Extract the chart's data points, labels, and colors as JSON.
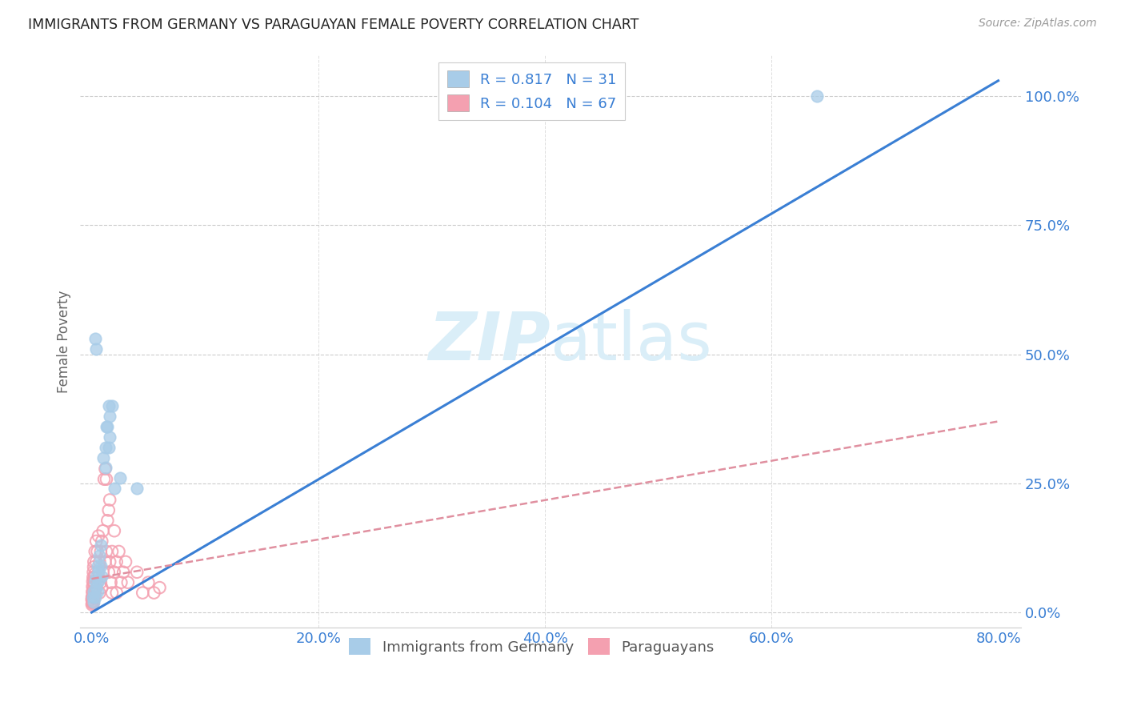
{
  "title": "IMMIGRANTS FROM GERMANY VS PARAGUAYAN FEMALE POVERTY CORRELATION CHART",
  "source": "Source: ZipAtlas.com",
  "xlabel_ticks": [
    "0.0%",
    "",
    "",
    "",
    "",
    "20.0%",
    "",
    "",
    "",
    "",
    "40.0%",
    "",
    "",
    "",
    "",
    "60.0%",
    "",
    "",
    "",
    "",
    "80.0%"
  ],
  "xlabel_vals": [
    0.0,
    0.04,
    0.08,
    0.12,
    0.16,
    0.2,
    0.24,
    0.28,
    0.32,
    0.36,
    0.4,
    0.44,
    0.48,
    0.52,
    0.56,
    0.6,
    0.64,
    0.68,
    0.72,
    0.76,
    0.8
  ],
  "xlabel_major_ticks": [
    0.0,
    0.2,
    0.4,
    0.6,
    0.8
  ],
  "xlabel_major_labels": [
    "0.0%",
    "20.0%",
    "40.0%",
    "60.0%",
    "80.0%"
  ],
  "ylabel_major_ticks": [
    0.0,
    0.25,
    0.5,
    0.75,
    1.0
  ],
  "ylabel_major_labels": [
    "0.0%",
    "25.0%",
    "50.0%",
    "75.0%",
    "100.0%"
  ],
  "xlim": [
    -0.01,
    0.82
  ],
  "ylim": [
    -0.03,
    1.08
  ],
  "ylabel": "Female Poverty",
  "legend_label1": "Immigrants from Germany",
  "legend_label2": "Paraguayans",
  "R1": 0.817,
  "N1": 31,
  "R2": 0.104,
  "N2": 67,
  "color_blue": "#a8cce8",
  "color_pink": "#f4a0b0",
  "line_blue": "#3a7fd4",
  "line_pink": "#e090a0",
  "watermark_zip": "ZIP",
  "watermark_atlas": "atlas",
  "watermark_color": "#daeef8",
  "blue_scatter": [
    [
      0.001,
      0.03
    ],
    [
      0.002,
      0.02
    ],
    [
      0.002,
      0.04
    ],
    [
      0.003,
      0.06
    ],
    [
      0.003,
      0.03
    ],
    [
      0.004,
      0.07
    ],
    [
      0.004,
      0.05
    ],
    [
      0.005,
      0.09
    ],
    [
      0.005,
      0.04
    ],
    [
      0.006,
      0.08
    ],
    [
      0.006,
      0.06
    ],
    [
      0.007,
      0.11
    ],
    [
      0.008,
      0.13
    ],
    [
      0.008,
      0.09
    ],
    [
      0.009,
      0.07
    ],
    [
      0.01,
      0.3
    ],
    [
      0.012,
      0.32
    ],
    [
      0.012,
      0.28
    ],
    [
      0.013,
      0.36
    ],
    [
      0.014,
      0.36
    ],
    [
      0.015,
      0.4
    ],
    [
      0.015,
      0.32
    ],
    [
      0.016,
      0.38
    ],
    [
      0.016,
      0.34
    ],
    [
      0.018,
      0.4
    ],
    [
      0.02,
      0.24
    ],
    [
      0.025,
      0.26
    ],
    [
      0.04,
      0.24
    ],
    [
      0.003,
      0.53
    ],
    [
      0.004,
      0.51
    ],
    [
      0.64,
      1.0
    ]
  ],
  "pink_scatter": [
    [
      0.0002,
      0.025
    ],
    [
      0.0003,
      0.015
    ],
    [
      0.0004,
      0.03
    ],
    [
      0.0005,
      0.018
    ],
    [
      0.0006,
      0.04
    ],
    [
      0.0007,
      0.022
    ],
    [
      0.0008,
      0.05
    ],
    [
      0.0009,
      0.03
    ],
    [
      0.001,
      0.06
    ],
    [
      0.001,
      0.02
    ],
    [
      0.0012,
      0.038
    ],
    [
      0.0013,
      0.068
    ],
    [
      0.0014,
      0.028
    ],
    [
      0.0015,
      0.078
    ],
    [
      0.0016,
      0.018
    ],
    [
      0.0017,
      0.048
    ],
    [
      0.0018,
      0.088
    ],
    [
      0.002,
      0.058
    ],
    [
      0.002,
      0.028
    ],
    [
      0.002,
      0.098
    ],
    [
      0.0022,
      0.038
    ],
    [
      0.0025,
      0.068
    ],
    [
      0.003,
      0.075
    ],
    [
      0.003,
      0.038
    ],
    [
      0.003,
      0.118
    ],
    [
      0.004,
      0.098
    ],
    [
      0.004,
      0.048
    ],
    [
      0.004,
      0.138
    ],
    [
      0.005,
      0.118
    ],
    [
      0.005,
      0.058
    ],
    [
      0.006,
      0.078
    ],
    [
      0.006,
      0.148
    ],
    [
      0.007,
      0.098
    ],
    [
      0.007,
      0.038
    ],
    [
      0.008,
      0.118
    ],
    [
      0.008,
      0.058
    ],
    [
      0.009,
      0.138
    ],
    [
      0.009,
      0.048
    ],
    [
      0.01,
      0.158
    ],
    [
      0.01,
      0.078
    ],
    [
      0.011,
      0.258
    ],
    [
      0.012,
      0.278
    ],
    [
      0.012,
      0.098
    ],
    [
      0.013,
      0.258
    ],
    [
      0.013,
      0.118
    ],
    [
      0.014,
      0.178
    ],
    [
      0.015,
      0.198
    ],
    [
      0.015,
      0.078
    ],
    [
      0.016,
      0.218
    ],
    [
      0.016,
      0.098
    ],
    [
      0.017,
      0.058
    ],
    [
      0.018,
      0.118
    ],
    [
      0.018,
      0.038
    ],
    [
      0.02,
      0.078
    ],
    [
      0.02,
      0.158
    ],
    [
      0.022,
      0.098
    ],
    [
      0.022,
      0.038
    ],
    [
      0.024,
      0.118
    ],
    [
      0.026,
      0.058
    ],
    [
      0.028,
      0.078
    ],
    [
      0.03,
      0.098
    ],
    [
      0.032,
      0.058
    ],
    [
      0.04,
      0.078
    ],
    [
      0.045,
      0.038
    ],
    [
      0.05,
      0.058
    ],
    [
      0.055,
      0.038
    ],
    [
      0.06,
      0.048
    ]
  ],
  "blue_line_x": [
    0.0,
    0.8
  ],
  "blue_line_y": [
    0.0,
    1.03
  ],
  "pink_line_x": [
    0.0,
    0.8
  ],
  "pink_line_y": [
    0.065,
    0.37
  ]
}
